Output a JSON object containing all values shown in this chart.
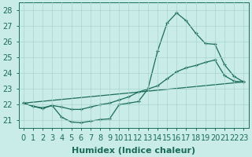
{
  "xlabel": "Humidex (Indice chaleur)",
  "xlim": [
    -0.5,
    23.5
  ],
  "ylim": [
    20.5,
    28.5
  ],
  "yticks": [
    21,
    22,
    23,
    24,
    25,
    26,
    27,
    28
  ],
  "xticks": [
    0,
    1,
    2,
    3,
    4,
    5,
    6,
    7,
    8,
    9,
    10,
    11,
    12,
    13,
    14,
    15,
    16,
    17,
    18,
    19,
    20,
    21,
    22,
    23
  ],
  "background_color": "#c9ece9",
  "grid_color": "#a8d5cf",
  "line_color": "#1a6b5a",
  "line1_x": [
    0,
    1,
    2,
    3,
    4,
    5,
    6,
    7,
    8,
    9,
    10,
    11,
    12,
    13,
    14,
    15,
    16,
    17,
    18,
    19,
    20,
    21,
    22,
    23
  ],
  "line1_y": [
    22.1,
    21.9,
    21.75,
    21.95,
    21.2,
    20.9,
    20.85,
    20.95,
    21.05,
    21.1,
    22.0,
    22.1,
    22.2,
    23.0,
    25.4,
    27.2,
    27.85,
    27.35,
    26.55,
    25.9,
    25.85,
    24.55,
    23.8,
    23.45
  ],
  "line2_x": [
    0,
    23
  ],
  "line2_y": [
    22.1,
    23.45
  ],
  "line3_x": [
    0,
    1,
    2,
    3,
    4,
    5,
    6,
    7,
    8,
    9,
    10,
    11,
    12,
    13,
    14,
    15,
    16,
    17,
    18,
    19,
    20,
    21,
    22,
    23
  ],
  "line3_y": [
    22.1,
    21.9,
    21.8,
    21.95,
    21.85,
    21.7,
    21.7,
    21.85,
    22.0,
    22.1,
    22.3,
    22.5,
    22.8,
    23.0,
    23.2,
    23.65,
    24.1,
    24.35,
    24.5,
    24.7,
    24.85,
    23.85,
    23.5,
    23.45
  ],
  "font_size_label": 8,
  "font_size_tick": 7
}
